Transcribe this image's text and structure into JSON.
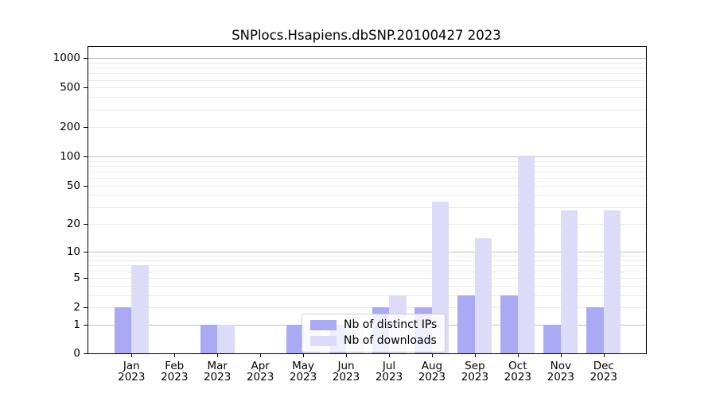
{
  "chart_data": {
    "type": "bar",
    "title": "SNPlocs.Hsapiens.dbSNP.20100427 2023",
    "xlabel": "",
    "ylabel": "",
    "y_scale": "log1p",
    "ylim": [
      0,
      1200
    ],
    "y_ticks": [
      0,
      1,
      2,
      5,
      10,
      20,
      50,
      100,
      200,
      500,
      1000
    ],
    "grid": {
      "on": true,
      "major": [
        1,
        10,
        100,
        1000
      ],
      "minor": [
        2,
        3,
        4,
        5,
        6,
        7,
        8,
        9,
        20,
        30,
        40,
        50,
        60,
        70,
        80,
        90,
        200,
        300,
        400,
        500,
        600,
        700,
        800,
        900
      ]
    },
    "categories": [
      {
        "month": "Jan",
        "year": "2023"
      },
      {
        "month": "Feb",
        "year": "2023"
      },
      {
        "month": "Mar",
        "year": "2023"
      },
      {
        "month": "Apr",
        "year": "2023"
      },
      {
        "month": "May",
        "year": "2023"
      },
      {
        "month": "Jun",
        "year": "2023"
      },
      {
        "month": "Jul",
        "year": "2023"
      },
      {
        "month": "Aug",
        "year": "2023"
      },
      {
        "month": "Sep",
        "year": "2023"
      },
      {
        "month": "Oct",
        "year": "2023"
      },
      {
        "month": "Nov",
        "year": "2023"
      },
      {
        "month": "Dec",
        "year": "2023"
      }
    ],
    "series": [
      {
        "name": "Nb of distinct IPs",
        "color": "#a9a9f4",
        "values": [
          2,
          0,
          1,
          0,
          1,
          1,
          2,
          2,
          3,
          3,
          1,
          2
        ]
      },
      {
        "name": "Nb of downloads",
        "color": "#dcdcf8",
        "values": [
          7,
          0,
          1,
          0,
          1,
          1,
          3,
          34,
          14,
          102,
          28,
          28
        ]
      }
    ],
    "legend_position": "lower-center-inside"
  },
  "colors": {
    "background": "#ffffff",
    "frame": "#000000",
    "grid_major": "#c0c0c0",
    "grid_minor": "#ebebeb",
    "text": "#000000",
    "legend_border": "#cccccc"
  }
}
